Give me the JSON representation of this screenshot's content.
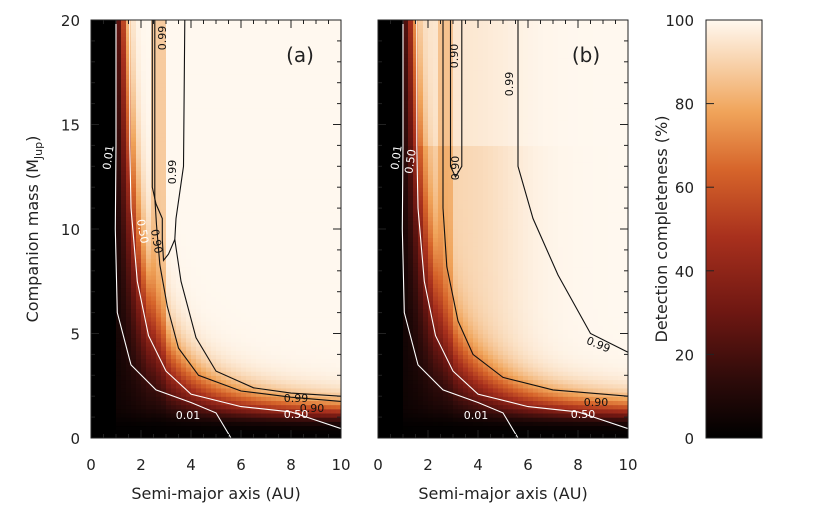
{
  "chart_data": [
    {
      "type": "heatmap",
      "panel": "(a)",
      "xlabel": "Semi-major axis (AU)",
      "ylabel": "Companion mass (M_Jup)",
      "ylabel_main": "Companion mass (M",
      "ylabel_sub": "Jup",
      "ylabel_close": ")",
      "xlim": [
        0,
        10
      ],
      "ylim": [
        0,
        20
      ],
      "xticks": [
        "0",
        "2",
        "4",
        "6",
        "8",
        "10"
      ],
      "yticks": [
        "0",
        "5",
        "10",
        "15",
        "20"
      ],
      "inner_working_edge_au": 2.6,
      "contours": [
        {
          "level": "0.01",
          "color": "#ffffff",
          "points": [
            [
              1.0,
              20
            ],
            [
              1.0,
              14
            ],
            [
              0.97,
              10
            ],
            [
              1.05,
              6
            ],
            [
              1.6,
              3.5
            ],
            [
              2.6,
              2.3
            ],
            [
              4.0,
              1.7
            ],
            [
              5.0,
              1.2
            ],
            [
              5.6,
              0
            ]
          ]
        },
        {
          "level": "0.50",
          "color": "#ffffff",
          "points": [
            [
              1.55,
              20
            ],
            [
              1.55,
              14
            ],
            [
              1.6,
              11
            ],
            [
              1.85,
              7.5
            ],
            [
              2.3,
              4.9
            ],
            [
              3.0,
              3.2
            ],
            [
              4.0,
              2.1
            ],
            [
              6,
              1.5
            ],
            [
              8,
              1.25
            ],
            [
              10,
              0.45
            ]
          ]
        },
        {
          "level": "0.90",
          "color": "#111111",
          "points": [
            [
              2.55,
              20
            ],
            [
              2.55,
              11.5
            ],
            [
              2.62,
              10.2
            ],
            [
              2.75,
              8.3
            ],
            [
              3.05,
              6.3
            ],
            [
              3.5,
              4.3
            ],
            [
              4.3,
              3.0
            ],
            [
              6,
              2.25
            ],
            [
              8,
              1.95
            ],
            [
              10,
              1.75
            ]
          ]
        },
        {
          "level": "0.99",
          "color": "#111111",
          "points": [
            [
              3.75,
              20
            ],
            [
              3.7,
              13
            ],
            [
              3.4,
              10.5
            ],
            [
              3.35,
              9.5
            ],
            [
              3.1,
              8.8
            ],
            [
              2.9,
              8.5
            ],
            [
              2.85,
              9.5
            ],
            [
              2.85,
              10.5
            ],
            [
              2.6,
              11.2
            ],
            [
              2.45,
              12
            ],
            [
              2.45,
              20
            ]
          ]
        },
        {
          "level": "0.99",
          "color": "#111111",
          "points": [
            [
              3.35,
              9.5
            ],
            [
              3.6,
              7.5
            ],
            [
              4.2,
              4.8
            ],
            [
              5.0,
              3.2
            ],
            [
              6.5,
              2.4
            ],
            [
              8,
              2.15
            ],
            [
              10,
              2.0
            ]
          ]
        }
      ],
      "contour_labels": [
        "0.99",
        "0.99",
        "0.01",
        "0.50",
        "0.90",
        "0.99",
        "0.90",
        "0.50",
        "0.01"
      ]
    },
    {
      "type": "heatmap",
      "panel": "(b)",
      "xlabel": "Semi-major axis (AU)",
      "xlim": [
        0,
        10
      ],
      "ylim": [
        0,
        20
      ],
      "xticks": [
        "0",
        "2",
        "4",
        "6",
        "8",
        "10"
      ],
      "inner_working_edge_au": 2.5,
      "contours": [
        {
          "level": "0.01",
          "color": "#ffffff",
          "points": [
            [
              1.0,
              20
            ],
            [
              1.0,
              14
            ],
            [
              0.97,
              10
            ],
            [
              1.05,
              6
            ],
            [
              1.6,
              3.5
            ],
            [
              2.6,
              2.3
            ],
            [
              4.0,
              1.7
            ],
            [
              5.0,
              1.2
            ],
            [
              5.6,
              0
            ]
          ]
        },
        {
          "level": "0.50",
          "color": "#ffffff",
          "points": [
            [
              1.55,
              20
            ],
            [
              1.55,
              14
            ],
            [
              1.6,
              11
            ],
            [
              1.85,
              7.5
            ],
            [
              2.3,
              4.9
            ],
            [
              3.0,
              3.2
            ],
            [
              4.0,
              2.1
            ],
            [
              6,
              1.5
            ],
            [
              8,
              1.25
            ],
            [
              10,
              0.45
            ]
          ]
        },
        {
          "level": "0.90",
          "color": "#111111",
          "points": [
            [
              3.35,
              20
            ],
            [
              3.35,
              13
            ],
            [
              3.1,
              12.5
            ],
            [
              2.9,
              13
            ],
            [
              2.9,
              20
            ]
          ]
        },
        {
          "level": "0.90",
          "color": "#111111",
          "points": [
            [
              2.6,
              20
            ],
            [
              2.6,
              11
            ],
            [
              2.75,
              8.2
            ],
            [
              3.2,
              5.6
            ],
            [
              3.8,
              4.0
            ],
            [
              5,
              2.9
            ],
            [
              7,
              2.3
            ],
            [
              10,
              2.0
            ]
          ]
        },
        {
          "level": "0.99",
          "color": "#111111",
          "points": [
            [
              5.6,
              20
            ],
            [
              5.6,
              13
            ],
            [
              6.2,
              10.5
            ],
            [
              7.2,
              7.8
            ],
            [
              8.5,
              5.0
            ],
            [
              10,
              4.1
            ]
          ]
        }
      ],
      "contour_labels": [
        "0.90",
        "0.99",
        "0.90",
        "0.01",
        "0.50",
        "0.99",
        "0.90",
        "0.50",
        "0.01"
      ]
    }
  ],
  "colorbar": {
    "label": "Detection completeness (%)",
    "range": [
      0,
      100
    ],
    "ticks": [
      "0",
      "20",
      "40",
      "60",
      "80",
      "100"
    ],
    "colormap": [
      "#000000",
      "#2e0b0a",
      "#6e1712",
      "#a8301d",
      "#d6642a",
      "#f0a45a",
      "#f8d3ad",
      "#fff8ef"
    ]
  }
}
